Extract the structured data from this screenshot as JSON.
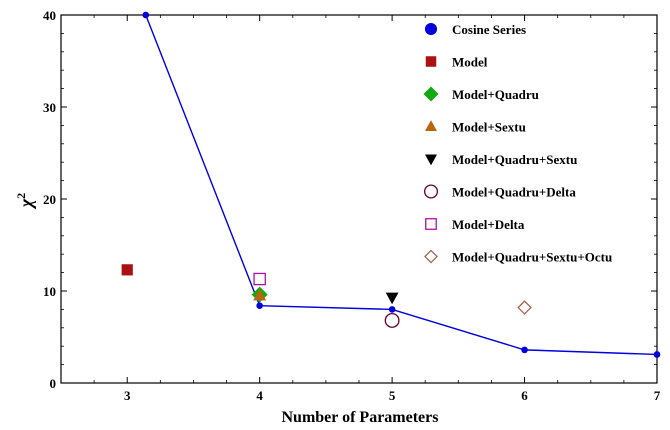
{
  "chart_data": {
    "type": "scatter",
    "xlabel": "Number of Parameters",
    "ylabel": "χ",
    "ylabel_superscript": "2",
    "xlim": [
      2.5,
      7
    ],
    "ylim": [
      0,
      40
    ],
    "xticks": [
      3,
      4,
      5,
      6,
      7
    ],
    "yticks": [
      0,
      10,
      20,
      30,
      40
    ],
    "legend_position": "top-right",
    "series": [
      {
        "name": "Cosine Series",
        "marker": "circle-filled",
        "color": "#0000dd",
        "line": true,
        "points": [
          [
            3.14,
            40
          ],
          [
            4,
            8.4
          ],
          [
            5,
            8.0
          ],
          [
            6,
            3.6
          ],
          [
            7,
            3.1
          ]
        ]
      },
      {
        "name": "Model",
        "marker": "square-filled",
        "color": "#aa1111",
        "line": false,
        "points": [
          [
            3,
            12.3
          ]
        ]
      },
      {
        "name": "Model+Quadru",
        "marker": "diamond-filled",
        "color": "#11aa11",
        "line": false,
        "points": [
          [
            4,
            9.6
          ]
        ]
      },
      {
        "name": "Model+Sextu",
        "marker": "triangle-up-filled",
        "color": "#b8660b",
        "line": false,
        "points": [
          [
            4,
            9.5
          ]
        ]
      },
      {
        "name": "Model+Quadru+Sextu",
        "marker": "triangle-down-filled",
        "color": "#000000",
        "line": false,
        "points": [
          [
            5,
            9.3
          ]
        ]
      },
      {
        "name": "Model+Quadru+Delta",
        "marker": "circle-open",
        "color": "#660033",
        "line": false,
        "points": [
          [
            5,
            6.8
          ]
        ]
      },
      {
        "name": "Model+Delta",
        "marker": "square-open",
        "color": "#aa11aa",
        "line": false,
        "points": [
          [
            4,
            11.3
          ]
        ]
      },
      {
        "name": "Model+Quadru+Sextu+Octu",
        "marker": "diamond-open",
        "color": "#aa5544",
        "line": false,
        "points": [
          [
            6,
            8.2
          ]
        ]
      }
    ]
  }
}
